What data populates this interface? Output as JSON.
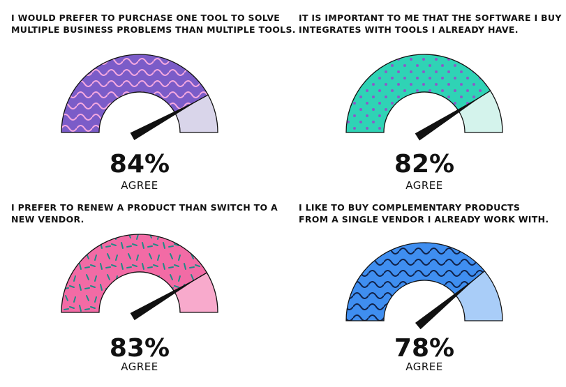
{
  "chart_data": [
    {
      "type": "gauge",
      "title": [
        "I WOULD PREFER TO PURCHASE ONE TOOL TO SOLVE",
        "MULTIPLE BUSINESS PROBLEMS THAN MULTIPLE TOOLS."
      ],
      "value": 84,
      "value_label": "84%",
      "label": "AGREE",
      "ylim": [
        0,
        100
      ],
      "color": "#7b5cc8",
      "track_color": "#d9d5ea"
    },
    {
      "type": "gauge",
      "title": [
        "IT IS IMPORTANT TO ME THAT THE SOFTWARE I BUY",
        "INTEGRATES WITH TOOLS I ALREADY HAVE."
      ],
      "value": 82,
      "value_label": "82%",
      "label": "AGREE",
      "ylim": [
        0,
        100
      ],
      "color": "#2fd3b5",
      "track_color": "#d4f3ec"
    },
    {
      "type": "gauge",
      "title": [
        "I PREFER TO RENEW A PRODUCT THAN SWITCH TO A",
        "NEW VENDOR."
      ],
      "value": 83,
      "value_label": "83%",
      "label": "AGREE",
      "ylim": [
        0,
        100
      ],
      "color": "#f26ba5",
      "track_color": "#f8aacc"
    },
    {
      "type": "gauge",
      "title": [
        "I LIKE TO BUY COMPLEMENTARY PRODUCTS",
        "FROM A SINGLE VENDOR I ALREADY WORK WITH."
      ],
      "value": 78,
      "value_label": "78%",
      "label": "AGREE",
      "ylim": [
        0,
        100
      ],
      "color": "#3f8ef0",
      "track_color": "#a9cdf8"
    }
  ]
}
